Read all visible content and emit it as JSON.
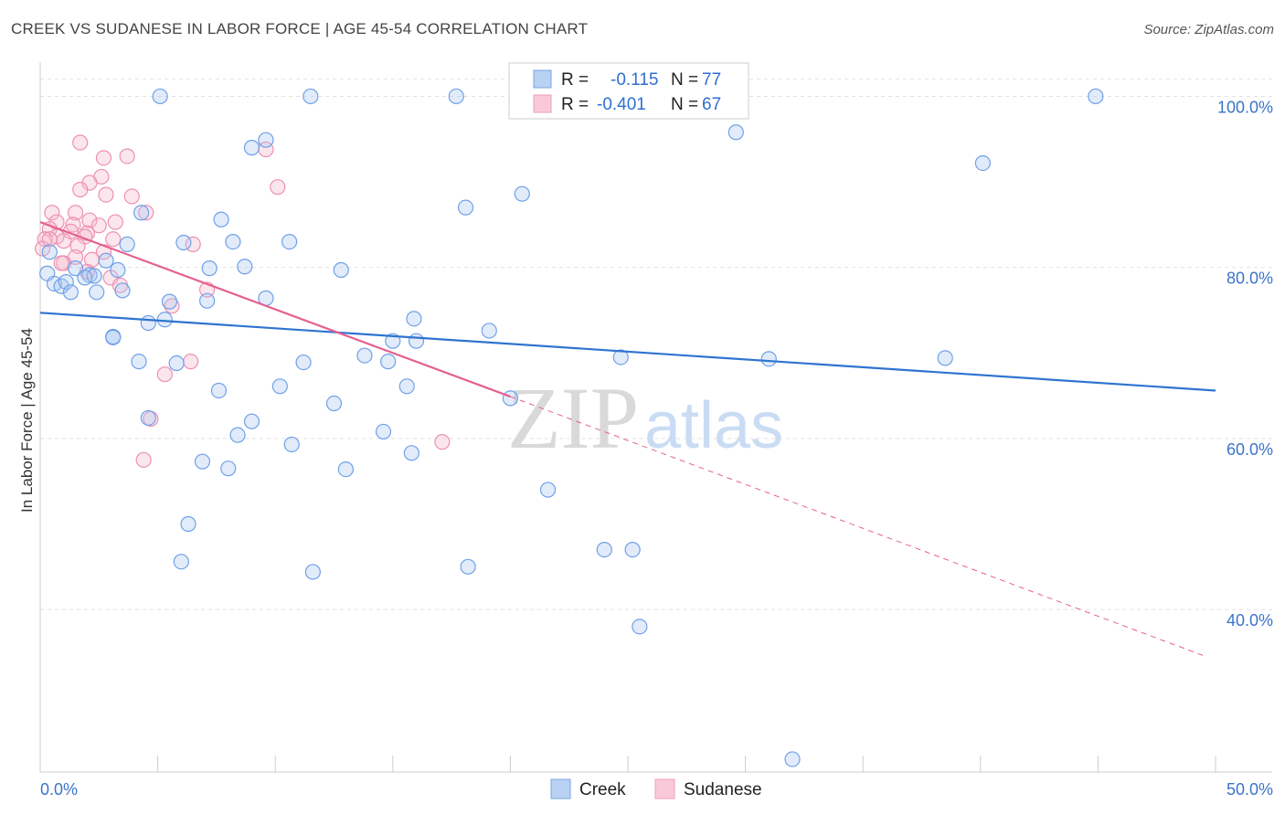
{
  "title": "CREEK VS SUDANESE IN LABOR FORCE | AGE 45-54 CORRELATION CHART",
  "source": "Source: ZipAtlas.com",
  "watermark": {
    "zip": "ZIP",
    "atlas": "atlas"
  },
  "colors": {
    "creek": "#6fa1e8",
    "creek_line": "#2f74d0",
    "sudanese": "#f28fb0",
    "sudanese_line": "#e5608f",
    "tick_text": "#3b74c9"
  },
  "legend": {
    "rows": [
      {
        "r_label": "R = ",
        "r_value": "-0.115",
        "n_label": "N = ",
        "n_value": "77"
      },
      {
        "r_label": "R = ",
        "r_value": "-0.401",
        "n_label": "N = ",
        "n_value": "67"
      }
    ]
  },
  "chart_data": {
    "type": "scatter",
    "xlabel": "",
    "ylabel": "In Labor Force | Age 45-54",
    "xlim": [
      0,
      50
    ],
    "ylim": [
      21,
      104
    ],
    "x_tick_labels": [
      {
        "value": 0,
        "label": "0.0%"
      },
      {
        "value": 50,
        "label": "50.0%"
      }
    ],
    "y_tick_labels": [
      {
        "value": 40,
        "label": "40.0%"
      },
      {
        "value": 60,
        "label": "60.0%"
      },
      {
        "value": 80,
        "label": "80.0%"
      },
      {
        "value": 100,
        "label": "100.0%"
      }
    ],
    "series": [
      {
        "name": "Creek",
        "trend": {
          "x": [
            0,
            50
          ],
          "y": [
            74.7,
            65.6
          ]
        },
        "points": [
          [
            5.1,
            100
          ],
          [
            11.5,
            100
          ],
          [
            17.7,
            100
          ],
          [
            44.9,
            100
          ],
          [
            29.6,
            95.8
          ],
          [
            9.6,
            94.9
          ],
          [
            9.0,
            94.0
          ],
          [
            40.1,
            92.2
          ],
          [
            20.5,
            88.6
          ],
          [
            18.1,
            87.0
          ],
          [
            4.3,
            86.4
          ],
          [
            7.7,
            85.6
          ],
          [
            6.1,
            82.9
          ],
          [
            8.2,
            83.0
          ],
          [
            10.6,
            83.0
          ],
          [
            3.7,
            82.7
          ],
          [
            2.8,
            80.8
          ],
          [
            0.4,
            81.8
          ],
          [
            3.3,
            79.7
          ],
          [
            7.2,
            79.9
          ],
          [
            8.7,
            80.1
          ],
          [
            12.8,
            79.7
          ],
          [
            1.5,
            79.9
          ],
          [
            2.1,
            79.1
          ],
          [
            2.3,
            79.0
          ],
          [
            1.9,
            78.8
          ],
          [
            0.3,
            79.3
          ],
          [
            0.6,
            78.1
          ],
          [
            0.9,
            77.8
          ],
          [
            1.1,
            78.3
          ],
          [
            1.3,
            77.1
          ],
          [
            2.4,
            77.1
          ],
          [
            3.5,
            77.3
          ],
          [
            5.5,
            76.0
          ],
          [
            7.1,
            76.1
          ],
          [
            9.6,
            76.4
          ],
          [
            15.9,
            74.0
          ],
          [
            5.3,
            73.9
          ],
          [
            4.6,
            73.5
          ],
          [
            19.1,
            72.6
          ],
          [
            3.1,
            71.9
          ],
          [
            3.1,
            71.8
          ],
          [
            3.1,
            71.8
          ],
          [
            3.1,
            71.8
          ],
          [
            3.1,
            71.8
          ],
          [
            3.1,
            71.8
          ],
          [
            3.1,
            71.8
          ],
          [
            3.1,
            71.8
          ],
          [
            3.1,
            71.8
          ],
          [
            3.1,
            71.8
          ],
          [
            3.1,
            71.8
          ],
          [
            3.1,
            71.8
          ],
          [
            3.1,
            71.8
          ],
          [
            3.1,
            71.8
          ],
          [
            3.1,
            71.8
          ],
          [
            3.1,
            71.8
          ],
          [
            3.1,
            71.8
          ],
          [
            3.1,
            71.8
          ],
          [
            3.1,
            71.8
          ],
          [
            3.1,
            71.8
          ],
          [
            3.1,
            71.8
          ],
          [
            3.1,
            71.8
          ],
          [
            3.1,
            71.8
          ],
          [
            3.1,
            71.8
          ],
          [
            3.1,
            71.8
          ],
          [
            3.1,
            71.8
          ],
          [
            3.1,
            71.8
          ],
          [
            3.1,
            71.8
          ],
          [
            3.1,
            71.8
          ],
          [
            3.1,
            71.8
          ],
          [
            3.1,
            71.8
          ],
          [
            3.1,
            71.8
          ],
          [
            3.1,
            71.8
          ],
          [
            3.1,
            71.8
          ],
          [
            3.1,
            71.8
          ],
          [
            3.1,
            71.8
          ],
          [
            3.1,
            71.8
          ]
        ]
      },
      {
        "name": "Sudanese",
        "trend": {
          "x": [
            0,
            20
          ],
          "y": [
            85.3,
            64.9
          ]
        },
        "trend_dashed": {
          "x": [
            20,
            49.5
          ],
          "y": [
            64.9,
            34.6
          ]
        },
        "points": [
          [
            1.7,
            94.6
          ],
          [
            3.7,
            93.0
          ],
          [
            9.6,
            93.8
          ],
          [
            2.7,
            92.8
          ],
          [
            2.6,
            90.6
          ],
          [
            2.1,
            89.9
          ],
          [
            10.1,
            89.4
          ],
          [
            1.7,
            89.1
          ],
          [
            2.8,
            88.5
          ],
          [
            3.9,
            88.3
          ],
          [
            0.5,
            86.4
          ],
          [
            1.5,
            86.4
          ],
          [
            4.5,
            86.4
          ],
          [
            2.1,
            85.5
          ],
          [
            3.2,
            85.3
          ],
          [
            0.7,
            85.3
          ],
          [
            1.4,
            85.0
          ],
          [
            2.5,
            84.9
          ],
          [
            0.4,
            84.5
          ],
          [
            1.3,
            84.2
          ],
          [
            2.0,
            84.0
          ],
          [
            0.7,
            83.6
          ],
          [
            1.9,
            83.6
          ],
          [
            0.2,
            83.3
          ],
          [
            3.1,
            83.3
          ],
          [
            1.0,
            83.1
          ],
          [
            6.5,
            82.7
          ],
          [
            1.6,
            82.5
          ],
          [
            0.1,
            82.2
          ],
          [
            2.7,
            81.8
          ],
          [
            1.5,
            81.2
          ],
          [
            2.2,
            80.9
          ],
          [
            1.0,
            80.5
          ],
          [
            0.9,
            80.5
          ],
          [
            2.0,
            79.5
          ],
          [
            3.0,
            78.8
          ],
          [
            3.4,
            77.9
          ],
          [
            7.1,
            77.4
          ],
          [
            5.6,
            75.5
          ],
          [
            5.3,
            67.5
          ],
          [
            6.4,
            69.0
          ],
          [
            4.7,
            62.3
          ],
          [
            17.1,
            59.6
          ],
          [
            4.4,
            57.5
          ],
          [
            0.4,
            83.3
          ],
          [
            0.4,
            83.3
          ],
          [
            0.4,
            83.3
          ],
          [
            0.4,
            83.3
          ],
          [
            0.4,
            83.3
          ],
          [
            0.4,
            83.3
          ],
          [
            0.4,
            83.3
          ],
          [
            0.4,
            83.3
          ],
          [
            0.4,
            83.3
          ],
          [
            0.4,
            83.3
          ],
          [
            0.4,
            83.3
          ],
          [
            0.4,
            83.3
          ],
          [
            0.4,
            83.3
          ],
          [
            0.4,
            83.3
          ],
          [
            0.4,
            83.3
          ],
          [
            0.4,
            83.3
          ],
          [
            0.4,
            83.3
          ],
          [
            0.4,
            83.3
          ],
          [
            0.4,
            83.3
          ],
          [
            0.4,
            83.3
          ],
          [
            0.4,
            83.3
          ],
          [
            0.4,
            83.3
          ],
          [
            0.4,
            83.3
          ]
        ]
      }
    ],
    "extra_creek_points": [
      [
        4.2,
        69.0
      ],
      [
        6.9,
        57.3
      ],
      [
        7.6,
        65.6
      ],
      [
        8.4,
        60.4
      ],
      [
        9.0,
        62.0
      ],
      [
        8.0,
        56.5
      ],
      [
        6.3,
        50.0
      ],
      [
        6.0,
        45.6
      ],
      [
        10.2,
        66.1
      ],
      [
        10.7,
        59.3
      ],
      [
        11.2,
        68.9
      ],
      [
        12.5,
        64.1
      ],
      [
        13.0,
        56.4
      ],
      [
        13.8,
        69.7
      ],
      [
        14.6,
        60.8
      ],
      [
        15.6,
        66.1
      ],
      [
        15.8,
        58.3
      ],
      [
        16.0,
        71.4
      ],
      [
        15.0,
        71.4
      ],
      [
        11.6,
        44.4
      ],
      [
        18.2,
        45.0
      ],
      [
        20.0,
        64.7
      ],
      [
        21.6,
        54.0
      ],
      [
        24.0,
        47.0
      ],
      [
        25.2,
        47.0
      ],
      [
        24.7,
        69.5
      ],
      [
        25.5,
        38.0
      ],
      [
        31.0,
        69.3
      ],
      [
        38.5,
        69.4
      ],
      [
        32.0,
        22.5
      ],
      [
        14.8,
        69.0
      ],
      [
        4.6,
        62.4
      ],
      [
        5.8,
        68.8
      ]
    ]
  },
  "legend_bottom": [
    {
      "label": "Creek"
    },
    {
      "label": "Sudanese"
    }
  ]
}
